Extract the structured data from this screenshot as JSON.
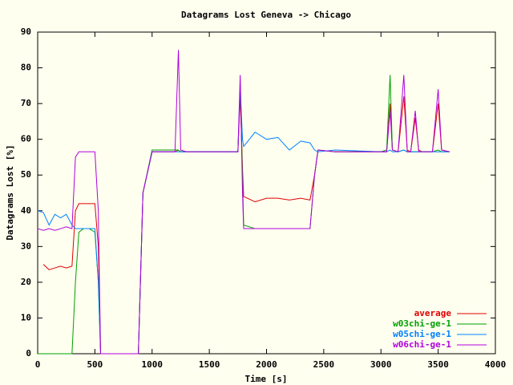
{
  "chart_data": {
    "type": "line",
    "title": "Datagrams Lost Geneva -> Chicago",
    "x_label": "Time [s]",
    "y_label": "Datagrams Lost [%]",
    "x": [
      0,
      50,
      100,
      150,
      200,
      250,
      300,
      330,
      360,
      400,
      450,
      500,
      530,
      550,
      600,
      850,
      880,
      920,
      1000,
      1200,
      1230,
      1250,
      1300,
      1700,
      1750,
      1770,
      1790,
      1800,
      1900,
      2000,
      2100,
      2200,
      2300,
      2380,
      2420,
      2450,
      2600,
      3000,
      3050,
      3080,
      3100,
      3150,
      3200,
      3230,
      3260,
      3300,
      3330,
      3360,
      3450,
      3500,
      3530,
      3600
    ],
    "series": [
      {
        "name": "average",
        "color": "#e00000",
        "values": [
          null,
          25,
          23.5,
          24,
          24.5,
          24,
          24.5,
          40,
          42,
          42,
          42,
          42,
          30,
          0,
          0,
          0,
          0,
          45,
          56.5,
          56.5,
          57,
          56.5,
          56.5,
          56.5,
          56.5,
          72,
          52,
          44,
          42.5,
          43.5,
          43.5,
          43,
          43.5,
          43,
          50,
          57,
          56.5,
          56.5,
          56.5,
          70,
          57,
          56.5,
          72,
          57,
          56.5,
          66,
          57,
          56.5,
          56.5,
          70,
          57,
          56.5
        ]
      },
      {
        "name": "w03chi-ge-1",
        "color": "#00a000",
        "values": [
          0,
          0,
          0,
          0,
          0,
          0,
          0,
          20,
          34,
          35,
          35,
          34,
          20,
          0,
          0,
          0,
          0,
          45,
          57,
          57,
          57,
          56.5,
          56.5,
          56.5,
          56.5,
          75,
          50,
          36,
          35,
          35,
          35,
          35,
          35,
          35,
          50,
          57,
          56.5,
          56.5,
          57,
          78,
          57,
          56.5,
          57,
          56.5,
          56.5,
          56.5,
          56.5,
          56.5,
          56.5,
          57,
          56.5,
          56.5
        ]
      },
      {
        "name": "w05chi-ge-1",
        "color": "#0080ff",
        "values": [
          40,
          39.5,
          36,
          39,
          38,
          39,
          36,
          35,
          35,
          35,
          35,
          35,
          20,
          0,
          0,
          0,
          0,
          45,
          56.5,
          56.5,
          56.5,
          56.5,
          56.5,
          56.5,
          56.5,
          75,
          60,
          58,
          62,
          60,
          60.5,
          57,
          59.5,
          59,
          57,
          56.5,
          57,
          56.5,
          56.5,
          57,
          56.5,
          56.5,
          57,
          56.5,
          56.5,
          56.5,
          56.5,
          56.5,
          56.5,
          56.5,
          56.5,
          56.5
        ]
      },
      {
        "name": "w06chi-ge-1",
        "color": "#b000e0",
        "values": [
          35,
          34.5,
          35,
          34.5,
          35,
          35.5,
          35,
          55,
          56.5,
          56.5,
          56.5,
          56.5,
          40,
          0,
          0,
          0,
          0,
          45,
          56.5,
          56.5,
          85,
          57,
          56.5,
          56.5,
          56.5,
          78,
          45,
          35,
          35,
          35,
          35,
          35,
          35,
          35,
          50,
          57,
          56.5,
          56.5,
          56.5,
          68,
          57,
          56.5,
          78,
          56.5,
          56.5,
          68,
          56.5,
          56.5,
          56.5,
          74,
          57,
          56.5
        ]
      }
    ],
    "xlim": [
      0,
      4000
    ],
    "xticks": [
      0,
      500,
      1000,
      1500,
      2000,
      2500,
      3000,
      3500,
      4000
    ],
    "ylim": [
      0,
      90
    ],
    "yticks": [
      0,
      10,
      20,
      30,
      40,
      50,
      60,
      70,
      80,
      90
    ],
    "legend": "bottom-right"
  }
}
